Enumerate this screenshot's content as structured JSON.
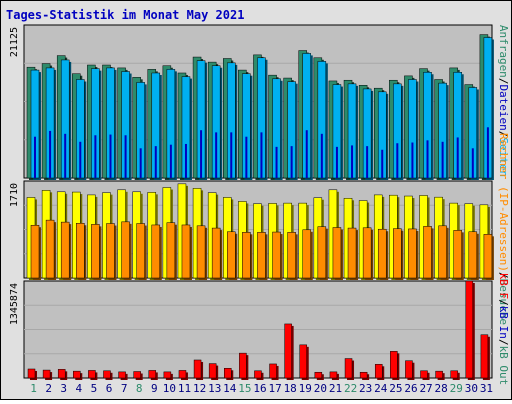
{
  "title": "Tages-Statistik im Monat May 2021",
  "chart_data": [
    {
      "type": "bar",
      "panel": "top",
      "ymax_label": "21125",
      "ylim": [
        0,
        21125
      ],
      "categories": [
        "1",
        "2",
        "3",
        "4",
        "5",
        "6",
        "7",
        "8",
        "9",
        "10",
        "11",
        "12",
        "13",
        "14",
        "15",
        "16",
        "17",
        "18",
        "19",
        "20",
        "21",
        "22",
        "23",
        "24",
        "25",
        "26",
        "27",
        "28",
        "29",
        "30",
        "31"
      ],
      "weekend_days": [
        "1",
        "8",
        "15",
        "22",
        "29"
      ],
      "series": [
        {
          "name": "Anfragen",
          "color": "#2e8b6b",
          "values": [
            15300,
            15800,
            16900,
            14400,
            15600,
            15600,
            15200,
            13900,
            15000,
            15500,
            14500,
            16700,
            16000,
            16500,
            14900,
            17000,
            14200,
            13800,
            17600,
            16600,
            13400,
            13500,
            12800,
            12400,
            13500,
            14100,
            15100,
            13600,
            15200,
            12900,
            19800
          ]
        },
        {
          "name": "Dateien",
          "color": "#00b0f0",
          "values": [
            14900,
            15200,
            16300,
            13600,
            15100,
            15200,
            14700,
            13200,
            14500,
            15000,
            14000,
            16200,
            15500,
            15900,
            14400,
            16600,
            13700,
            13300,
            17200,
            16100,
            12900,
            13000,
            12300,
            11900,
            13000,
            13600,
            14600,
            13100,
            14600,
            12500,
            19400
          ]
        },
        {
          "name": "Seiten",
          "color": "#0000c0",
          "values": [
            5700,
            6500,
            6100,
            5000,
            5900,
            6000,
            5900,
            4100,
            4400,
            4600,
            4700,
            6600,
            6300,
            6300,
            5700,
            6300,
            4300,
            4400,
            6600,
            6100,
            4300,
            4500,
            4400,
            3900,
            4800,
            4900,
            5200,
            5000,
            5600,
            4100,
            7000
          ]
        }
      ]
    },
    {
      "type": "bar",
      "panel": "middle",
      "ymax_label": "1710",
      "ylim": [
        0,
        1710
      ],
      "categories": [
        "1",
        "2",
        "3",
        "4",
        "5",
        "6",
        "7",
        "8",
        "9",
        "10",
        "11",
        "12",
        "13",
        "14",
        "15",
        "16",
        "17",
        "18",
        "19",
        "20",
        "21",
        "22",
        "23",
        "24",
        "25",
        "26",
        "27",
        "28",
        "29",
        "30",
        "31"
      ],
      "series": [
        {
          "name": "Besuche",
          "color": "#ffff00",
          "values": [
            1420,
            1545,
            1520,
            1515,
            1465,
            1505,
            1555,
            1520,
            1510,
            1595,
            1660,
            1580,
            1505,
            1420,
            1350,
            1310,
            1315,
            1320,
            1320,
            1415,
            1555,
            1405,
            1365,
            1465,
            1460,
            1445,
            1455,
            1425,
            1320,
            1310,
            1290
          ]
        },
        {
          "name": "Rechner (IP-Adressen)",
          "color": "#ff8c00",
          "values": [
            930,
            1020,
            985,
            965,
            945,
            960,
            990,
            960,
            935,
            975,
            935,
            920,
            880,
            815,
            805,
            805,
            810,
            805,
            850,
            905,
            890,
            880,
            885,
            860,
            870,
            865,
            910,
            920,
            840,
            815,
            770
          ]
        }
      ]
    },
    {
      "type": "bar",
      "panel": "bottom",
      "ymax_label": "1345874",
      "ylim": [
        0,
        1345874
      ],
      "categories": [
        "1",
        "2",
        "3",
        "4",
        "5",
        "6",
        "7",
        "8",
        "9",
        "10",
        "11",
        "12",
        "13",
        "14",
        "15",
        "16",
        "17",
        "18",
        "19",
        "20",
        "21",
        "22",
        "23",
        "24",
        "25",
        "26",
        "27",
        "28",
        "29",
        "30",
        "31"
      ],
      "series": [
        {
          "name": "kB F",
          "color": "#ff0000",
          "values": [
            125000,
            110000,
            120000,
            95000,
            105000,
            100000,
            85000,
            90000,
            105000,
            85000,
            105000,
            250000,
            200000,
            135000,
            345000,
            100000,
            195000,
            750000,
            460000,
            80000,
            85000,
            270000,
            80000,
            190000,
            370000,
            240000,
            100000,
            95000,
            100000,
            1345874,
            600000
          ]
        },
        {
          "name": "kB In",
          "color": "#0000c0",
          "values": [
            0,
            0,
            0,
            0,
            0,
            0,
            0,
            0,
            0,
            0,
            0,
            0,
            0,
            0,
            0,
            0,
            0,
            0,
            0,
            0,
            0,
            0,
            0,
            0,
            0,
            0,
            0,
            0,
            0,
            0,
            0
          ]
        },
        {
          "name": "kB Out",
          "color": "#2e8b6b",
          "values": [
            0,
            0,
            0,
            0,
            0,
            0,
            0,
            0,
            0,
            0,
            0,
            0,
            0,
            0,
            0,
            0,
            0,
            0,
            0,
            0,
            0,
            0,
            0,
            0,
            0,
            0,
            0,
            0,
            0,
            0,
            0
          ]
        }
      ]
    }
  ],
  "legend_top": [
    {
      "text": "Anfragen",
      "color": "#2e8b6b"
    },
    {
      "text": "/",
      "color": "#000000"
    },
    {
      "text": "Dateien",
      "color": "#0000c0"
    },
    {
      "text": "/",
      "color": "#000000"
    },
    {
      "text": "Seiten",
      "color": "#00b0f0"
    }
  ],
  "legend_middle": [
    {
      "text": "Rechner (IP-Adressen)",
      "color": "#ff8c00"
    },
    {
      "text": "/",
      "color": "#000000"
    },
    {
      "text": "Besuche",
      "color": "#2e8b6b"
    }
  ],
  "legend_bottom": [
    {
      "text": "kB F",
      "color": "#ff0000"
    },
    {
      "text": "/",
      "color": "#000000"
    },
    {
      "text": "kB In",
      "color": "#0000c0"
    },
    {
      "text": "/",
      "color": "#000000"
    },
    {
      "text": "kB Out",
      "color": "#2e8b6b"
    }
  ]
}
